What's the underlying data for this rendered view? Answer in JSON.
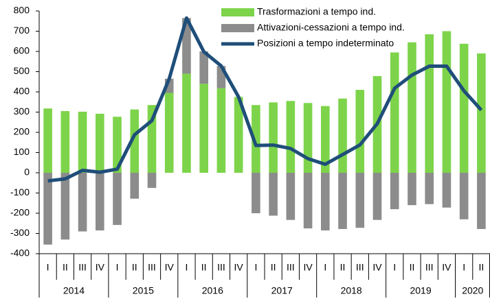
{
  "chart_data": {
    "type": "bar-line",
    "categories": [
      "I",
      "II",
      "III",
      "IV",
      "I",
      "II",
      "III",
      "IV",
      "I",
      "II",
      "III",
      "IV",
      "I",
      "II",
      "III",
      "IV",
      "I",
      "II",
      "III",
      "IV",
      "I",
      "II",
      "III",
      "IV",
      "I",
      "II"
    ],
    "years": [
      "2014",
      "2015",
      "2016",
      "2017",
      "2018",
      "2019",
      "2020"
    ],
    "series": [
      {
        "name": "Trasformazioni a tempo ind.",
        "kind": "bar",
        "color": "#7dd44a",
        "values": [
          318,
          305,
          302,
          292,
          277,
          313,
          335,
          395,
          490,
          440,
          418,
          375,
          335,
          348,
          355,
          345,
          330,
          367,
          410,
          478,
          595,
          645,
          685,
          700,
          638,
          590
        ]
      },
      {
        "name": "Attivazioni-cessazioni a tempo ind.",
        "kind": "bar",
        "color": "#8c8c8c",
        "values": [
          -355,
          -330,
          -290,
          -285,
          -258,
          -128,
          -75,
          70,
          275,
          160,
          110,
          0,
          -200,
          -212,
          -233,
          -275,
          -285,
          -278,
          -272,
          -233,
          -180,
          -160,
          -155,
          -172,
          -230,
          -278
        ]
      },
      {
        "name": "Posizioni a tempo indeterminato",
        "kind": "line",
        "color": "#1f4e79",
        "values": [
          -40,
          -30,
          12,
          3,
          18,
          188,
          258,
          465,
          765,
          598,
          528,
          375,
          135,
          137,
          120,
          70,
          42,
          90,
          138,
          243,
          418,
          483,
          527,
          527,
          405,
          310
        ]
      }
    ],
    "ylim": [
      -400,
      800
    ],
    "yticks": [
      -400,
      -300,
      -200,
      -100,
      0,
      100,
      200,
      300,
      400,
      500,
      600,
      700,
      800
    ]
  }
}
